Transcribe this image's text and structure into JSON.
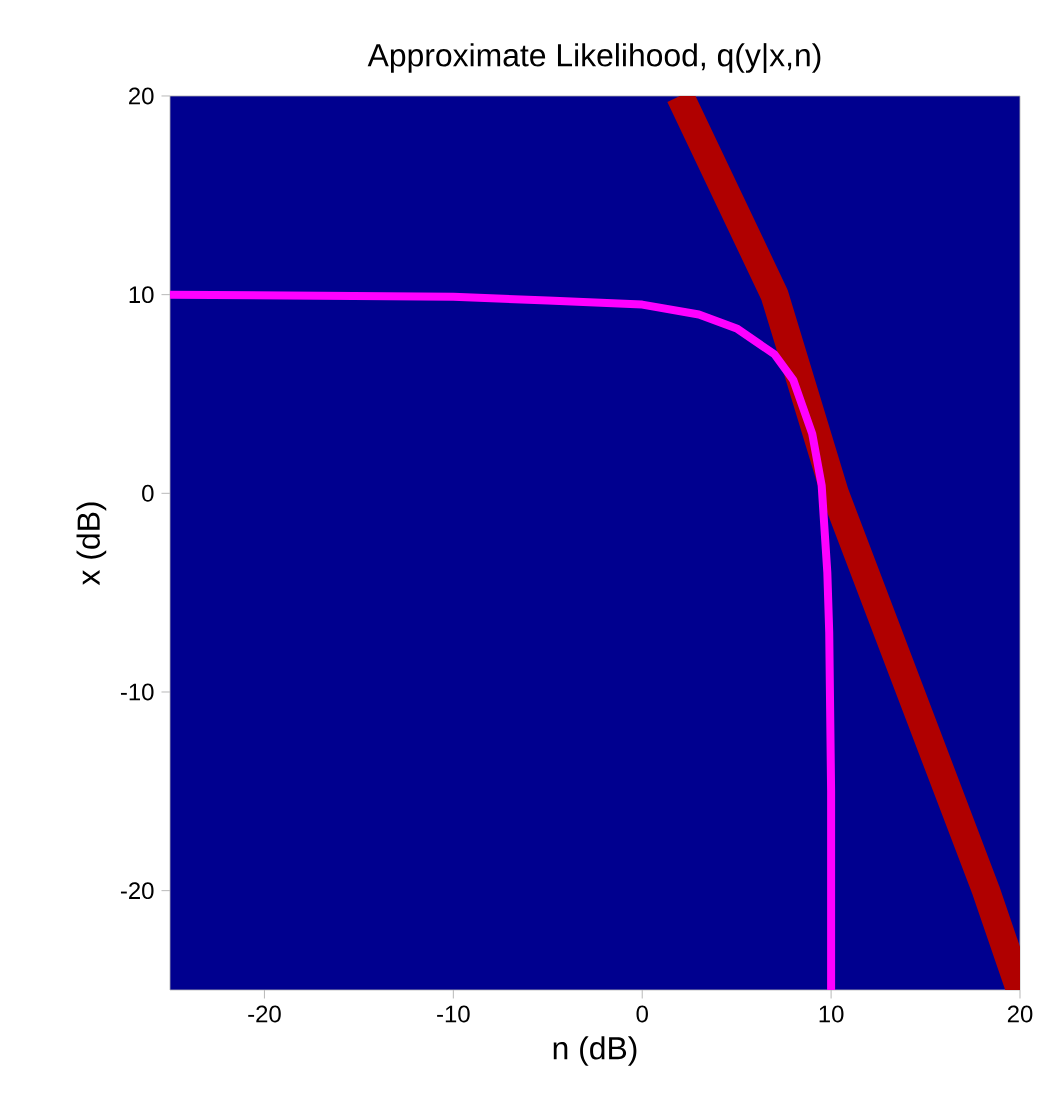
{
  "chart_data": {
    "type": "line",
    "title": "Approximate Likelihood, q(y|x,n)",
    "xlabel": "n (dB)",
    "ylabel": "x (dB)",
    "xlim": [
      -25,
      20
    ],
    "ylim": [
      -25,
      20
    ],
    "xticks": [
      -20,
      -10,
      0,
      10,
      20
    ],
    "yticks": [
      -20,
      -10,
      0,
      10,
      20
    ],
    "series": [
      {
        "color": "#b00000",
        "x": [
          2,
          7,
          10.2,
          14.2,
          18.2,
          20
        ],
        "values": [
          20,
          10,
          0,
          -10,
          -20,
          -25
        ]
      },
      {
        "color": "#ff00ff",
        "x": [
          -25,
          -10,
          -5,
          0,
          3,
          5,
          7,
          8,
          9,
          9.5,
          9.8,
          9.9,
          10,
          10
        ],
        "values": [
          10,
          9.9,
          9.7,
          9.5,
          9,
          8.3,
          7,
          5.7,
          3,
          0.4,
          -4,
          -7,
          -15,
          -25
        ]
      }
    ]
  }
}
